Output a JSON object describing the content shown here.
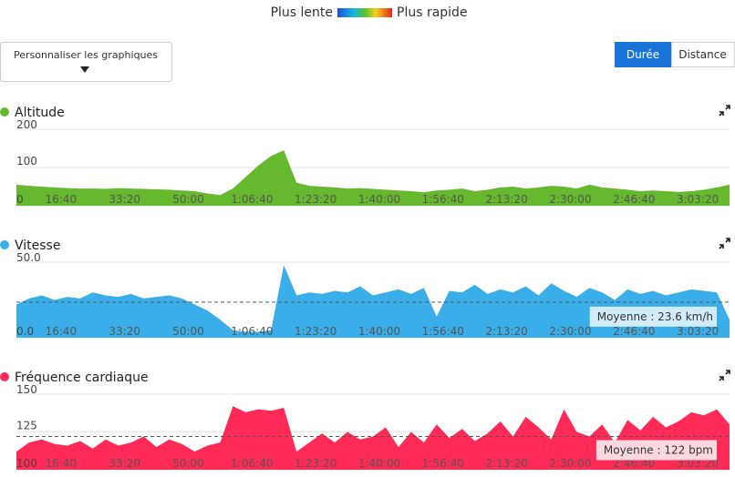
{
  "legend": {
    "slow": "Plus lente",
    "fast": "Plus rapide"
  },
  "customize_button": "Personnaliser les graphiques",
  "toggle": {
    "options": [
      "Durée",
      "Distance"
    ],
    "active": 0
  },
  "chart_data": [
    {
      "type": "area",
      "title": "Altitude",
      "color": "#66b82e",
      "grid": true,
      "x": [
        300,
        500,
        700,
        900,
        1100,
        1300,
        1500,
        1700,
        1900,
        2100,
        2300,
        2500,
        2700,
        2900,
        3100,
        3300,
        3500,
        3700,
        3900,
        4100,
        4300,
        4500,
        4700,
        4900,
        5100,
        5300,
        5500,
        5700,
        5900,
        6100,
        6300,
        6500,
        6700,
        6900,
        7100,
        7300,
        7500,
        7700,
        7900,
        8100,
        8300,
        8500,
        8700,
        8900,
        9100,
        9300,
        9500,
        9700,
        9900,
        10100,
        10300,
        10500,
        10700,
        10900,
        11100,
        11300,
        11500
      ],
      "values": [
        55,
        52,
        50,
        48,
        46,
        45,
        45,
        44,
        46,
        45,
        44,
        43,
        42,
        40,
        38,
        32,
        28,
        45,
        75,
        105,
        130,
        145,
        60,
        52,
        50,
        48,
        45,
        46,
        44,
        42,
        40,
        38,
        35,
        40,
        42,
        45,
        38,
        42,
        48,
        50,
        45,
        48,
        52,
        50,
        45,
        55,
        48,
        45,
        42,
        38,
        40,
        38,
        36,
        38,
        42,
        48,
        55
      ],
      "xlim": [
        300,
        11500
      ],
      "ylim": [
        0,
        200
      ],
      "yticks": [
        0,
        100,
        200
      ],
      "xticks": [
        {
          "value": 1000,
          "label": "16:40"
        },
        {
          "value": 2000,
          "label": "33:20"
        },
        {
          "value": 3000,
          "label": "50:00"
        },
        {
          "value": 4000,
          "label": "1:06:40"
        },
        {
          "value": 5000,
          "label": "1:23:20"
        },
        {
          "value": 6000,
          "label": "1:40:00"
        },
        {
          "value": 7000,
          "label": "1:56:40"
        },
        {
          "value": 8000,
          "label": "2:13:20"
        },
        {
          "value": 9000,
          "label": "2:30:00"
        },
        {
          "value": 10000,
          "label": "2:46:40"
        },
        {
          "value": 11000,
          "label": "3:03:20"
        }
      ]
    },
    {
      "type": "area",
      "title": "Vitesse",
      "color": "#3aaee8",
      "grid": true,
      "x": [
        300,
        500,
        700,
        900,
        1100,
        1300,
        1500,
        1700,
        1900,
        2100,
        2300,
        2500,
        2700,
        2900,
        3100,
        3300,
        3500,
        3700,
        3900,
        4100,
        4300,
        4500,
        4700,
        4900,
        5100,
        5300,
        5500,
        5700,
        5900,
        6100,
        6300,
        6500,
        6700,
        6900,
        7100,
        7300,
        7500,
        7700,
        7900,
        8100,
        8300,
        8500,
        8700,
        8900,
        9100,
        9300,
        9500,
        9700,
        9900,
        10100,
        10300,
        10500,
        10700,
        10900,
        11100,
        11300,
        11500
      ],
      "values": [
        22,
        26,
        28,
        25,
        27,
        26,
        30,
        28,
        27,
        29,
        26,
        27,
        28,
        26,
        22,
        18,
        12,
        5,
        4,
        4,
        5,
        48,
        28,
        30,
        29,
        31,
        30,
        34,
        28,
        30,
        32,
        29,
        33,
        14,
        31,
        30,
        35,
        29,
        32,
        30,
        34,
        28,
        36,
        31,
        27,
        33,
        30,
        25,
        32,
        29,
        31,
        28,
        30,
        32,
        31,
        30,
        12
      ],
      "xlim": [
        300,
        11500
      ],
      "ylim": [
        0,
        50
      ],
      "yticks": [
        {
          "value": 0,
          "label": "0.0"
        },
        {
          "value": 50,
          "label": "50.0"
        }
      ],
      "xticks": [
        {
          "value": 1000,
          "label": "16:40"
        },
        {
          "value": 2000,
          "label": "33:20"
        },
        {
          "value": 3000,
          "label": "50:00"
        },
        {
          "value": 4000,
          "label": "1:06:40"
        },
        {
          "value": 5000,
          "label": "1:23:20"
        },
        {
          "value": 6000,
          "label": "1:40:00"
        },
        {
          "value": 7000,
          "label": "1:56:40"
        },
        {
          "value": 8000,
          "label": "2:13:20"
        },
        {
          "value": 9000,
          "label": "2:30:00"
        },
        {
          "value": 10000,
          "label": "2:46:40"
        },
        {
          "value": 11000,
          "label": "3:03:20"
        }
      ],
      "average": 23.6,
      "annotation": "Moyenne : 23.6 km/h"
    },
    {
      "type": "area",
      "title": "Fréquence cardiaque",
      "color": "#ff2a55",
      "grid": true,
      "x": [
        300,
        500,
        700,
        900,
        1100,
        1300,
        1500,
        1700,
        1900,
        2100,
        2300,
        2500,
        2700,
        2900,
        3100,
        3300,
        3500,
        3700,
        3900,
        4100,
        4300,
        4500,
        4700,
        4900,
        5100,
        5300,
        5500,
        5700,
        5900,
        6100,
        6300,
        6500,
        6700,
        6900,
        7100,
        7300,
        7500,
        7700,
        7900,
        8100,
        8300,
        8500,
        8700,
        8900,
        9100,
        9300,
        9500,
        9700,
        9900,
        10100,
        10300,
        10500,
        10700,
        10900,
        11100,
        11300,
        11500
      ],
      "values": [
        112,
        118,
        120,
        117,
        116,
        119,
        114,
        120,
        116,
        118,
        122,
        115,
        120,
        117,
        112,
        116,
        118,
        142,
        138,
        140,
        139,
        141,
        112,
        118,
        124,
        118,
        125,
        120,
        122,
        128,
        115,
        125,
        118,
        130,
        121,
        127,
        119,
        124,
        132,
        122,
        135,
        128,
        120,
        140,
        125,
        122,
        130,
        118,
        133,
        126,
        135,
        128,
        132,
        138,
        136,
        140,
        130
      ],
      "xlim": [
        300,
        11500
      ],
      "ylim": [
        100,
        150
      ],
      "yticks": [
        100,
        125,
        150
      ],
      "xticks": [
        {
          "value": 1000,
          "label": "16:40"
        },
        {
          "value": 2000,
          "label": "33:20"
        },
        {
          "value": 3000,
          "label": "50:00"
        },
        {
          "value": 4000,
          "label": "1:06:40"
        },
        {
          "value": 5000,
          "label": "1:23:20"
        },
        {
          "value": 6000,
          "label": "1:40:00"
        },
        {
          "value": 7000,
          "label": "1:56:40"
        },
        {
          "value": 8000,
          "label": "2:13:20"
        },
        {
          "value": 9000,
          "label": "2:30:00"
        },
        {
          "value": 10000,
          "label": "2:46:40"
        },
        {
          "value": 11000,
          "label": "3:03:20"
        }
      ],
      "average": 122,
      "annotation": "Moyenne : 122 bpm"
    }
  ]
}
